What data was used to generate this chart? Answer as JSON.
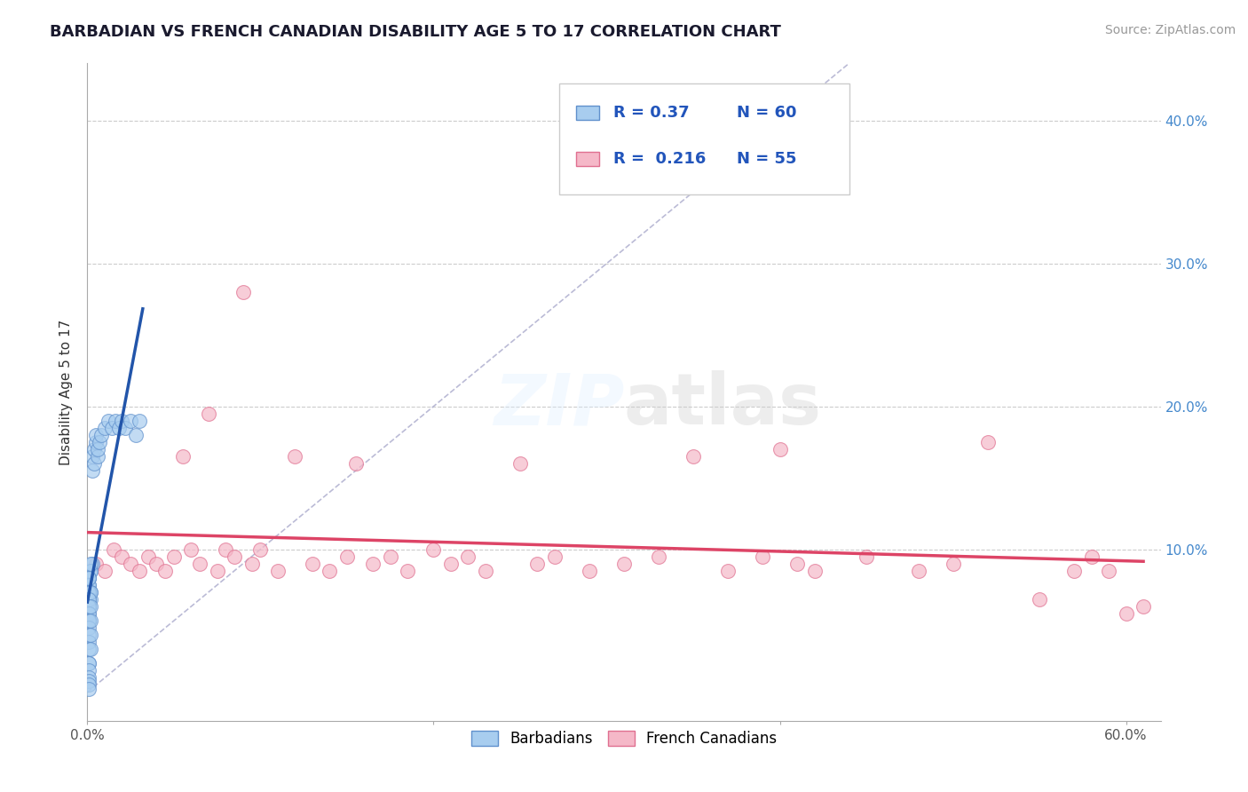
{
  "title": "BARBADIAN VS FRENCH CANADIAN DISABILITY AGE 5 TO 17 CORRELATION CHART",
  "source_text": "Source: ZipAtlas.com",
  "ylabel": "Disability Age 5 to 17",
  "xlim": [
    0.0,
    0.62
  ],
  "ylim": [
    -0.02,
    0.44
  ],
  "xticks": [
    0.0,
    0.2,
    0.4,
    0.6
  ],
  "yticks": [
    0.1,
    0.2,
    0.3,
    0.4
  ],
  "xtick_labels_show": [
    "0.0%",
    "60.0%"
  ],
  "xtick_positions_show": [
    0.0,
    0.6
  ],
  "ytick_labels": [
    "10.0%",
    "20.0%",
    "30.0%",
    "40.0%"
  ],
  "barbadian_color": "#A8CDEF",
  "french_color": "#F5B8C8",
  "barbadian_edge": "#6090CC",
  "french_edge": "#E07090",
  "regression_blue": "#2255AA",
  "regression_pink": "#DD4466",
  "dashed_line_color": "#AAAACC",
  "grid_color": "#CCCCCC",
  "R_barbadian": 0.37,
  "N_barbadian": 60,
  "R_french": 0.216,
  "N_french": 55,
  "barbadian_x": [
    0.002,
    0.001,
    0.003,
    0.001,
    0.002,
    0.001,
    0.001,
    0.002,
    0.001,
    0.002,
    0.001,
    0.001,
    0.001,
    0.001,
    0.002,
    0.001,
    0.001,
    0.002,
    0.001,
    0.001,
    0.001,
    0.001,
    0.001,
    0.001,
    0.001,
    0.002,
    0.001,
    0.001,
    0.002,
    0.001,
    0.001,
    0.002,
    0.001,
    0.002,
    0.001,
    0.001,
    0.001,
    0.001,
    0.001,
    0.001,
    0.003,
    0.003,
    0.004,
    0.004,
    0.005,
    0.005,
    0.006,
    0.006,
    0.007,
    0.008,
    0.01,
    0.012,
    0.014,
    0.016,
    0.018,
    0.02,
    0.022,
    0.025,
    0.028,
    0.03
  ],
  "barbadian_y": [
    0.085,
    0.075,
    0.09,
    0.08,
    0.085,
    0.08,
    0.075,
    0.07,
    0.08,
    0.09,
    0.065,
    0.06,
    0.065,
    0.07,
    0.065,
    0.07,
    0.06,
    0.07,
    0.065,
    0.06,
    0.055,
    0.05,
    0.055,
    0.05,
    0.05,
    0.06,
    0.045,
    0.04,
    0.05,
    0.035,
    0.03,
    0.04,
    0.02,
    0.03,
    0.02,
    0.015,
    0.01,
    0.008,
    0.005,
    0.002,
    0.155,
    0.165,
    0.16,
    0.17,
    0.175,
    0.18,
    0.165,
    0.17,
    0.175,
    0.18,
    0.185,
    0.19,
    0.185,
    0.19,
    0.185,
    0.19,
    0.185,
    0.19,
    0.18,
    0.19
  ],
  "french_x": [
    0.005,
    0.01,
    0.015,
    0.02,
    0.025,
    0.03,
    0.035,
    0.04,
    0.045,
    0.05,
    0.055,
    0.06,
    0.065,
    0.07,
    0.075,
    0.08,
    0.085,
    0.09,
    0.095,
    0.1,
    0.11,
    0.12,
    0.13,
    0.14,
    0.15,
    0.155,
    0.165,
    0.175,
    0.185,
    0.2,
    0.21,
    0.22,
    0.23,
    0.25,
    0.26,
    0.27,
    0.29,
    0.31,
    0.33,
    0.35,
    0.37,
    0.39,
    0.4,
    0.41,
    0.42,
    0.45,
    0.48,
    0.5,
    0.52,
    0.55,
    0.57,
    0.58,
    0.59,
    0.6,
    0.61
  ],
  "french_y": [
    0.09,
    0.085,
    0.1,
    0.095,
    0.09,
    0.085,
    0.095,
    0.09,
    0.085,
    0.095,
    0.165,
    0.1,
    0.09,
    0.195,
    0.085,
    0.1,
    0.095,
    0.28,
    0.09,
    0.1,
    0.085,
    0.165,
    0.09,
    0.085,
    0.095,
    0.16,
    0.09,
    0.095,
    0.085,
    0.1,
    0.09,
    0.095,
    0.085,
    0.16,
    0.09,
    0.095,
    0.085,
    0.09,
    0.095,
    0.165,
    0.085,
    0.095,
    0.17,
    0.09,
    0.085,
    0.095,
    0.085,
    0.09,
    0.175,
    0.065,
    0.085,
    0.095,
    0.085,
    0.055,
    0.06
  ]
}
